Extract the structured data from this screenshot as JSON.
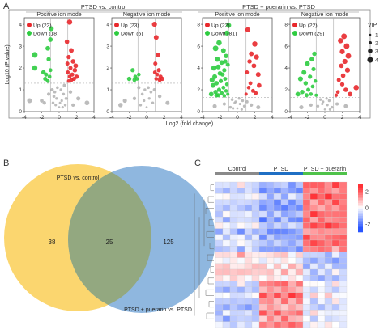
{
  "panels": {
    "A": {
      "label": "A",
      "group_titles": [
        "PTSD vs. control",
        "PTSD + puerarin vs. PTSD"
      ],
      "ylabel": "Log10 (P value)",
      "xlabel": "Log2 (fold change)",
      "vip_legend": {
        "title": "VIP",
        "items": [
          "1",
          "2",
          "3",
          "4"
        ]
      },
      "colors": {
        "up": "#e8282c",
        "down": "#2ecc40",
        "ns": "#b5b5b5"
      }
    },
    "B": {
      "label": "B"
    },
    "C": {
      "label": "C"
    }
  },
  "chart_data": [
    {
      "type": "scatter",
      "title": "Positive ion mode",
      "group": "PTSD vs. control",
      "xlim": [
        -4,
        4
      ],
      "ylim": [
        0,
        4.3
      ],
      "xticks": [
        -4,
        -2,
        0,
        2,
        4
      ],
      "yticks": [
        0,
        1,
        2,
        3,
        4
      ],
      "threshold_y": 1.3,
      "threshold_x": [
        -1,
        1
      ],
      "legend": [
        {
          "name": "Up (23)",
          "category": "up"
        },
        {
          "name": "Down (18)",
          "category": "down"
        }
      ],
      "points": {
        "up": [
          [
            1.2,
            4.1
          ],
          [
            0.9,
            3.2
          ],
          [
            1.4,
            2.8
          ],
          [
            1.1,
            2.5
          ],
          [
            1.6,
            2.3
          ],
          [
            1.3,
            2.0
          ],
          [
            1.8,
            1.9
          ],
          [
            1.0,
            1.8
          ],
          [
            1.5,
            1.7
          ],
          [
            1.2,
            1.6
          ],
          [
            2.0,
            1.6
          ],
          [
            1.7,
            1.5
          ],
          [
            1.4,
            1.45
          ],
          [
            0.95,
            2.2
          ],
          [
            1.9,
            2.1
          ],
          [
            1.1,
            1.4
          ]
        ],
        "down": [
          [
            -2.8,
            2.6
          ],
          [
            -2.8,
            2.0
          ],
          [
            -1.3,
            2.9
          ],
          [
            -1.2,
            2.4
          ],
          [
            -1.0,
            1.9
          ],
          [
            -1.5,
            1.7
          ],
          [
            -1.1,
            1.6
          ],
          [
            -1.6,
            1.5
          ],
          [
            -1.3,
            1.4
          ],
          [
            -1.8,
            1.8
          ],
          [
            -0.9,
            3.8
          ],
          [
            -1.0,
            3.3
          ]
        ],
        "ns": [
          [
            0,
            0.2
          ],
          [
            0.3,
            0.5
          ],
          [
            -0.3,
            0.6
          ],
          [
            0.5,
            0.8
          ],
          [
            -0.5,
            0.9
          ],
          [
            0.7,
            0.3
          ],
          [
            -0.7,
            0.4
          ],
          [
            0.2,
            1.0
          ],
          [
            -0.2,
            1.1
          ],
          [
            0.6,
            1.2
          ],
          [
            -0.6,
            0.7
          ],
          [
            0.1,
            0.4
          ],
          [
            -1.2,
            0.8
          ],
          [
            1.3,
            0.9
          ],
          [
            -2.0,
            0.5
          ],
          [
            2.2,
            0.6
          ],
          [
            -3.4,
            0.5
          ],
          [
            3.2,
            0.4
          ],
          [
            0.4,
            0.2
          ],
          [
            -0.4,
            0.3
          ],
          [
            0.8,
            0.6
          ],
          [
            -0.8,
            1.0
          ],
          [
            1.6,
            0.3
          ],
          [
            -1.7,
            0.4
          ]
        ]
      }
    },
    {
      "type": "scatter",
      "title": "Negative ion mode",
      "group": "PTSD vs. control",
      "xlim": [
        -4,
        4
      ],
      "ylim": [
        0,
        4.3
      ],
      "xticks": [
        -4,
        -2,
        0,
        2,
        4
      ],
      "yticks": [
        0,
        1,
        2,
        3,
        4
      ],
      "threshold_y": 1.3,
      "threshold_x": [
        -1,
        1
      ],
      "legend": [
        {
          "name": "Up (23)",
          "category": "up"
        },
        {
          "name": "Down (6)",
          "category": "down"
        }
      ],
      "points": {
        "up": [
          [
            0.9,
            4.0
          ],
          [
            1.1,
            3.4
          ],
          [
            1.3,
            2.6
          ],
          [
            1.0,
            2.2
          ],
          [
            1.4,
            1.9
          ],
          [
            1.2,
            1.7
          ],
          [
            1.6,
            1.6
          ],
          [
            1.1,
            1.5
          ],
          [
            1.5,
            1.45
          ],
          [
            0.95,
            1.8
          ],
          [
            1.8,
            1.5
          ]
        ],
        "down": [
          [
            -1.6,
            1.9
          ],
          [
            -1.3,
            1.6
          ],
          [
            -2.0,
            1.5
          ],
          [
            -1.1,
            1.5
          ],
          [
            -1.4,
            1.45
          ],
          [
            -0.9,
            1.7
          ]
        ],
        "ns": [
          [
            0,
            0.2
          ],
          [
            0.3,
            0.6
          ],
          [
            -0.3,
            0.5
          ],
          [
            0.5,
            0.9
          ],
          [
            -0.5,
            0.8
          ],
          [
            0.7,
            0.4
          ],
          [
            -0.7,
            0.3
          ],
          [
            0.2,
            1.1
          ],
          [
            -0.2,
            1.0
          ],
          [
            -2.5,
            0.5
          ],
          [
            2.4,
            0.4
          ],
          [
            -3.0,
            0.3
          ],
          [
            1.5,
            0.7
          ],
          [
            -1.4,
            0.6
          ],
          [
            0.9,
            1.0
          ],
          [
            -0.9,
            1.1
          ]
        ]
      }
    },
    {
      "type": "scatter",
      "title": "Positive ion mode",
      "group": "PTSD + puerarin vs. PTSD",
      "xlim": [
        -4,
        4
      ],
      "ylim": [
        0,
        8.6
      ],
      "xticks": [
        -4,
        -2,
        0,
        2,
        4
      ],
      "yticks": [
        0,
        2,
        4,
        6,
        8
      ],
      "threshold_y": 1.3,
      "threshold_x": [
        -1,
        1
      ],
      "legend": [
        {
          "name": "Up (22)",
          "category": "up"
        },
        {
          "name": "Down (81)",
          "category": "down"
        }
      ],
      "points": {
        "up": [
          [
            1.2,
            7.5
          ],
          [
            2.0,
            6.2
          ],
          [
            1.6,
            5.3
          ],
          [
            2.2,
            5.0
          ],
          [
            1.4,
            4.6
          ],
          [
            1.9,
            4.2
          ],
          [
            1.1,
            3.6
          ],
          [
            2.4,
            3.4
          ],
          [
            1.5,
            2.6
          ],
          [
            1.3,
            2.2
          ],
          [
            1.8,
            1.9
          ],
          [
            2.1,
            1.7
          ],
          [
            1.0,
            1.6
          ],
          [
            2.5,
            2.4
          ]
        ],
        "down": [
          [
            -1.0,
            7.9
          ],
          [
            -1.2,
            7.2
          ],
          [
            -2.1,
            6.3
          ],
          [
            -2.5,
            5.8
          ],
          [
            -1.6,
            5.6
          ],
          [
            -1.3,
            5.1
          ],
          [
            -2.3,
            4.8
          ],
          [
            -1.8,
            4.5
          ],
          [
            -2.7,
            4.0
          ],
          [
            -1.1,
            4.3
          ],
          [
            -1.5,
            3.8
          ],
          [
            -2.0,
            3.5
          ],
          [
            -2.6,
            3.2
          ],
          [
            -1.4,
            3.0
          ],
          [
            -1.9,
            2.8
          ],
          [
            -2.4,
            2.6
          ],
          [
            -1.2,
            2.5
          ],
          [
            -2.8,
            2.4
          ],
          [
            -1.6,
            2.2
          ],
          [
            -2.1,
            2.0
          ],
          [
            -1.3,
            1.9
          ],
          [
            -2.5,
            1.8
          ],
          [
            -1.8,
            1.7
          ],
          [
            -1.1,
            1.6
          ],
          [
            -2.2,
            1.5
          ],
          [
            -1.5,
            1.45
          ],
          [
            -3.0,
            1.6
          ],
          [
            -2.9,
            2.9
          ],
          [
            -1.7,
            3.4
          ],
          [
            -2.2,
            4.1
          ],
          [
            -1.4,
            4.6
          ],
          [
            -2.4,
            1.5
          ]
        ],
        "ns": [
          [
            0,
            0.3
          ],
          [
            0.3,
            0.7
          ],
          [
            -0.3,
            0.8
          ],
          [
            0.6,
            1.0
          ],
          [
            -0.6,
            1.1
          ],
          [
            0.8,
            0.5
          ],
          [
            -0.8,
            0.4
          ],
          [
            0.2,
            1.2
          ],
          [
            -0.2,
            0.9
          ],
          [
            1.6,
            0.6
          ],
          [
            -1.5,
            0.7
          ],
          [
            2.4,
            0.4
          ],
          [
            -2.6,
            0.5
          ],
          [
            0.5,
            0.2
          ],
          [
            -0.5,
            0.3
          ],
          [
            1.1,
            0.9
          ]
        ]
      }
    },
    {
      "type": "scatter",
      "title": "Negative ion mode",
      "group": "PTSD + puerarin vs. PTSD",
      "xlim": [
        -4,
        4
      ],
      "ylim": [
        0,
        8.6
      ],
      "xticks": [
        -4,
        -2,
        0,
        2,
        4
      ],
      "yticks": [
        0,
        2,
        4,
        6,
        8
      ],
      "threshold_y": 1.3,
      "threshold_x": [
        -1,
        1
      ],
      "legend": [
        {
          "name": "Up (22)",
          "category": "up"
        },
        {
          "name": "Down (29)",
          "category": "down"
        }
      ],
      "points": {
        "up": [
          [
            2.2,
            6.9
          ],
          [
            1.8,
            6.5
          ],
          [
            2.5,
            6.0
          ],
          [
            2.0,
            5.5
          ],
          [
            2.7,
            5.1
          ],
          [
            2.3,
            4.6
          ],
          [
            1.9,
            4.2
          ],
          [
            2.6,
            3.8
          ],
          [
            2.1,
            3.3
          ],
          [
            1.6,
            2.9
          ],
          [
            3.6,
            2.2
          ],
          [
            2.4,
            2.0
          ],
          [
            1.5,
            1.8
          ],
          [
            2.9,
            1.6
          ],
          [
            1.3,
            1.5
          ],
          [
            2.0,
            2.5
          ]
        ],
        "down": [
          [
            -1.2,
            5.3
          ],
          [
            -1.5,
            4.8
          ],
          [
            -2.0,
            4.4
          ],
          [
            -1.3,
            3.9
          ],
          [
            -2.4,
            3.6
          ],
          [
            -1.7,
            3.2
          ],
          [
            -2.8,
            3.0
          ],
          [
            -1.1,
            2.8
          ],
          [
            -2.2,
            2.6
          ],
          [
            -1.4,
            2.3
          ],
          [
            -1.9,
            2.0
          ],
          [
            -2.6,
            1.8
          ],
          [
            -1.6,
            1.6
          ],
          [
            -2.1,
            1.5
          ],
          [
            -3.1,
            1.6
          ],
          [
            -1.0,
            1.5
          ]
        ],
        "ns": [
          [
            0,
            0.2
          ],
          [
            0.3,
            0.6
          ],
          [
            -0.3,
            0.7
          ],
          [
            0.5,
            1.0
          ],
          [
            -0.5,
            1.1
          ],
          [
            0.8,
            0.4
          ],
          [
            -0.8,
            0.5
          ],
          [
            0.2,
            1.2
          ],
          [
            -0.2,
            0.9
          ],
          [
            1.4,
            0.7
          ],
          [
            -1.6,
            0.6
          ],
          [
            2.4,
            0.5
          ],
          [
            -2.7,
            0.4
          ],
          [
            0.6,
            0.2
          ]
        ]
      }
    },
    {
      "type": "venn",
      "sets": [
        {
          "name": "PTSD vs. control",
          "only": 38,
          "color": "#fbd66f"
        },
        {
          "name": "PTSD + puerarin vs. PTSD",
          "only": 125,
          "color": "#8fb7df"
        }
      ],
      "intersection": 25
    },
    {
      "type": "heatmap",
      "groups": [
        {
          "name": "Control",
          "color": "#8a8a8a",
          "n": 6
        },
        {
          "name": "PTSD",
          "color": "#1f6fc4",
          "n": 6
        },
        {
          "name": "PTSD + puerarin",
          "color": "#4fc24a",
          "n": 6
        }
      ],
      "n_rows": 25,
      "colorbar": {
        "ticks": [
          2,
          0,
          -2
        ],
        "min": -3,
        "max": 3
      },
      "blocks": [
        {
          "rows": 12,
          "means": [
            -0.6,
            -1.3,
            1.7
          ]
        },
        {
          "rows": 5,
          "means": [
            0.4,
            0.3,
            -0.9
          ]
        },
        {
          "rows": 8,
          "means": [
            -0.8,
            1.4,
            -0.3
          ]
        }
      ],
      "row_offsets": [
        0.3,
        -0.2,
        0.4,
        0.0,
        -0.3,
        0.2,
        -0.1,
        0.5,
        -0.4,
        0.1,
        0.3,
        -0.2,
        0.2,
        -0.3,
        0.1,
        0.4,
        -0.1,
        0.3,
        -0.2,
        0.5,
        0.0,
        -0.4,
        0.2,
        -0.1,
        0.3
      ],
      "col_offsets": [
        -0.2,
        0.3,
        0.1,
        -0.4,
        0.2,
        0.0,
        0.4,
        -0.1,
        0.2,
        -0.3,
        0.3,
        0.1,
        -0.2,
        0.3,
        0.0,
        0.2,
        -0.3,
        0.1
      ]
    }
  ]
}
